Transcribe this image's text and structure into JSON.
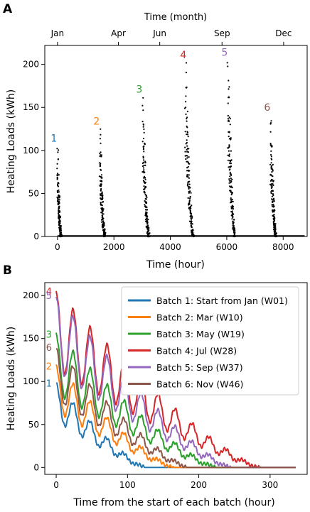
{
  "chart_data": [
    {
      "panel_label": "A",
      "type": "scatter",
      "title": "",
      "xlabel": "Time (hour)",
      "ylabel": "Heating Loads (kWh)",
      "top_axis_label": "Time (month)",
      "top_ticks": [
        {
          "label": "Jan",
          "x": 0
        },
        {
          "label": "Apr",
          "x": 2160
        },
        {
          "label": "Jun",
          "x": 3624
        },
        {
          "label": "Sep",
          "x": 5832
        },
        {
          "label": "Dec",
          "x": 8016
        }
      ],
      "xlim": [
        -450,
        8850
      ],
      "ylim": [
        0,
        222
      ],
      "xticks": [
        0,
        2000,
        4000,
        6000,
        8000
      ],
      "yticks": [
        0,
        50,
        100,
        150,
        200
      ],
      "point_color": "#000000",
      "batches": [
        {
          "label": "1",
          "start": 0,
          "peak": 101,
          "color": "#1f77b4"
        },
        {
          "label": "2",
          "start": 1512,
          "peak": 121,
          "color": "#ff7f0e"
        },
        {
          "label": "3",
          "start": 3024,
          "peak": 158,
          "color": "#2ca02c"
        },
        {
          "label": "4",
          "start": 4536,
          "peak": 198,
          "color": "#d62728"
        },
        {
          "label": "5",
          "start": 6048,
          "peak": 201,
          "color": "#9467bd"
        },
        {
          "label": "6",
          "start": 7560,
          "peak": 137,
          "color": "#8c564b"
        }
      ]
    },
    {
      "panel_label": "B",
      "type": "line",
      "title": "",
      "xlabel": "Time from the start of each batch (hour)",
      "ylabel": "Heating Loads (kWh)",
      "xlim": [
        -16,
        352
      ],
      "ylim": [
        -8,
        215
      ],
      "xticks": [
        0,
        100,
        200,
        300
      ],
      "yticks": [
        0,
        50,
        100,
        150,
        200
      ],
      "legend_position": "upper-right",
      "series": [
        {
          "name": "Batch 1: Start from Jan (W01)",
          "label": "1",
          "color": "#1f77b4",
          "peak": 98,
          "end": 125
        },
        {
          "name": "Batch 2: Mar (W10)",
          "label": "2",
          "color": "#ff7f0e",
          "peak": 118,
          "end": 165
        },
        {
          "name": "Batch 3: May (W19)",
          "label": "3",
          "color": "#2ca02c",
          "peak": 155,
          "end": 225
        },
        {
          "name": "Batch 4: Jul (W28)",
          "label": "4",
          "color": "#d62728",
          "peak": 205,
          "end": 285
        },
        {
          "name": "Batch 5: Sep (W37)",
          "label": "5",
          "color": "#9467bd",
          "peak": 200,
          "end": 245
        },
        {
          "name": "Batch 6: Nov (W46)",
          "label": "6",
          "color": "#8c564b",
          "peak": 140,
          "end": 185
        }
      ],
      "flat_until": 336
    }
  ]
}
